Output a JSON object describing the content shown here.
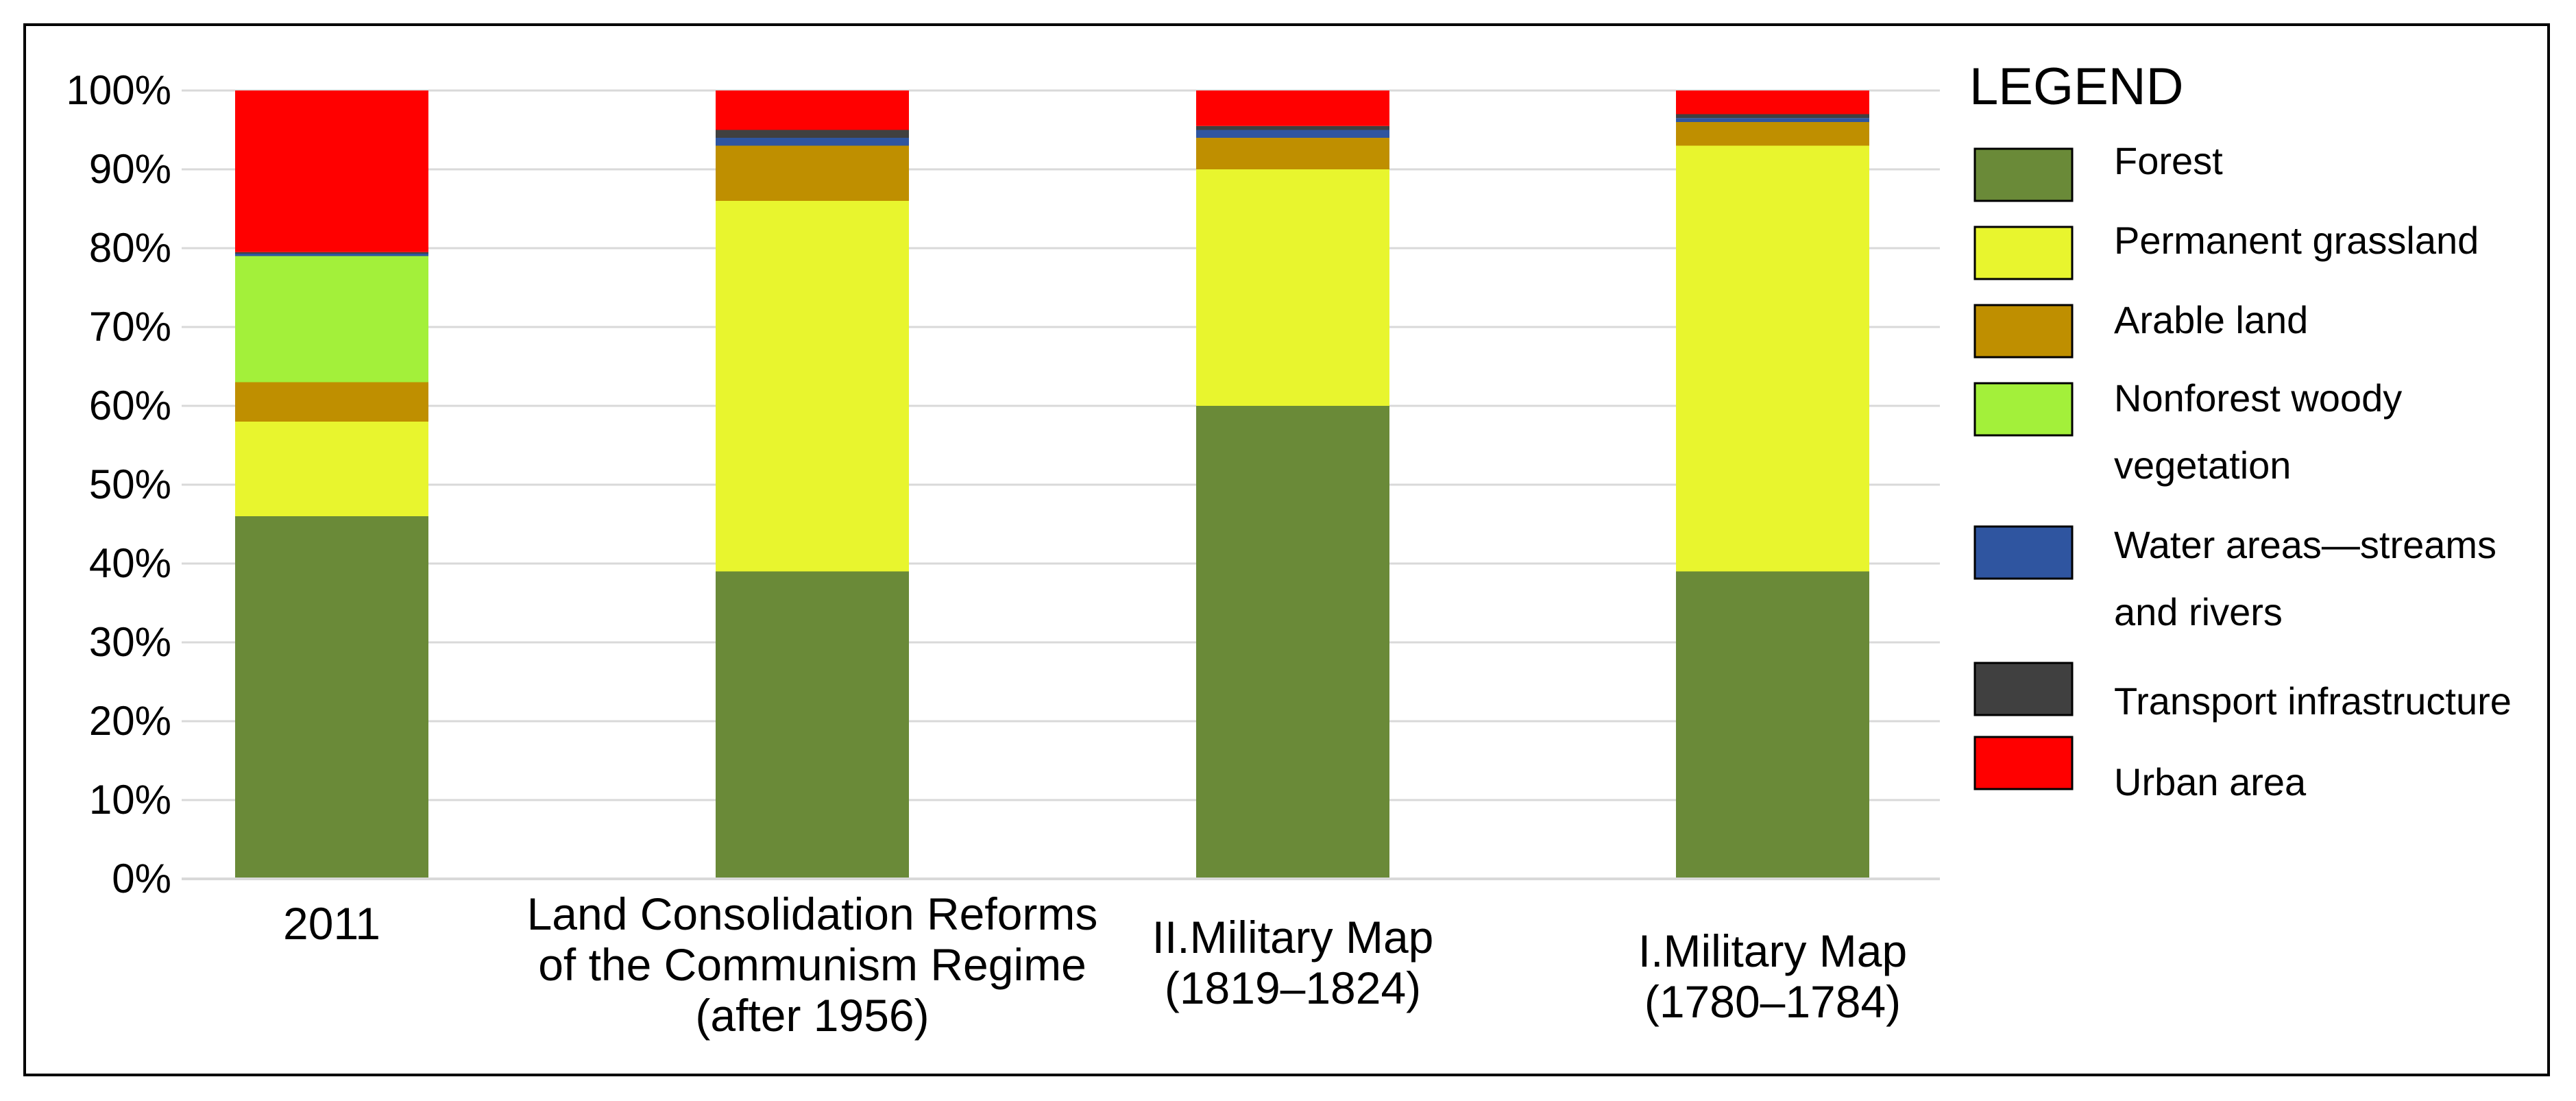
{
  "chart_data": {
    "type": "bar",
    "stacked": true,
    "title": "",
    "xlabel": "",
    "ylabel": "",
    "ylim": [
      0,
      100
    ],
    "y_ticks": [
      "0%",
      "10%",
      "20%",
      "30%",
      "40%",
      "50%",
      "60%",
      "70%",
      "80%",
      "90%",
      "100%"
    ],
    "categories": [
      [
        "2011"
      ],
      [
        "Land Consolidation Reforms",
        "of the Communism Regime",
        "(after 1956)"
      ],
      [
        "II.Military Map",
        "(1819–1824)"
      ],
      [
        "I.Military Map",
        "(1780–1784)"
      ]
    ],
    "series": [
      {
        "name": "Forest",
        "color": "#6a8a38",
        "values": [
          46,
          39,
          60,
          39
        ]
      },
      {
        "name": "Permanent grassland",
        "color": "#e8f52e",
        "values": [
          12,
          47,
          30,
          54
        ]
      },
      {
        "name": "Arable land",
        "color": "#bf8f00",
        "values": [
          5,
          7,
          4,
          3
        ]
      },
      {
        "name": "Nonforest woody vegetation",
        "color": "#a3f03a",
        "values": [
          16,
          0,
          0,
          0
        ]
      },
      {
        "name": "Water areas—streams and rivers",
        "color": "#2f55a0",
        "values": [
          0.3,
          1,
          1,
          0.5
        ]
      },
      {
        "name": "Transport infrastructure",
        "color": "#404040",
        "values": [
          0.2,
          1,
          0.5,
          0.5
        ]
      },
      {
        "name": "Urban area",
        "color": "#ff0000",
        "values": [
          20.5,
          5,
          4.5,
          3
        ]
      }
    ],
    "legend": {
      "title": "LEGEND",
      "position": "right",
      "entries": [
        [
          "Forest"
        ],
        [
          "Permanent grassland"
        ],
        [
          "Arable land"
        ],
        [
          "Nonforest woody",
          "vegetation"
        ],
        [
          "Water areas—streams",
          "and rivers"
        ],
        [
          "Transport infrastructure"
        ],
        [
          "Urban area"
        ]
      ]
    }
  }
}
